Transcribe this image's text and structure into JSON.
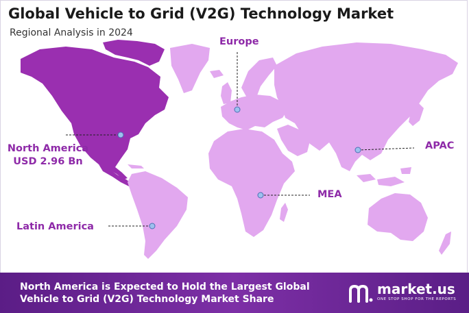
{
  "header": {
    "title": "Global Vehicle to Grid (V2G) Technology Market",
    "subtitle": "Regional Analysis in 2024"
  },
  "regions": {
    "europe": {
      "label": "Europe"
    },
    "north_america": {
      "label": "North America",
      "value": "USD 2.96 Bn"
    },
    "apac": {
      "label": "APAC"
    },
    "mea": {
      "label": "MEA"
    },
    "latin_america": {
      "label": "Latin America"
    }
  },
  "footer": {
    "line1": "North America is Expected to Hold the Largest Global",
    "line2": "Vehicle to Grid (V2G) Technology Market Share"
  },
  "brand": {
    "name": "market.us",
    "tagline": "ONE STOP SHOP FOR THE REPORTS"
  },
  "colors": {
    "highlight": "#9a2fb0",
    "land": "#e2a8ef",
    "label": "#8e2aa8",
    "footer": "#6a2596"
  }
}
